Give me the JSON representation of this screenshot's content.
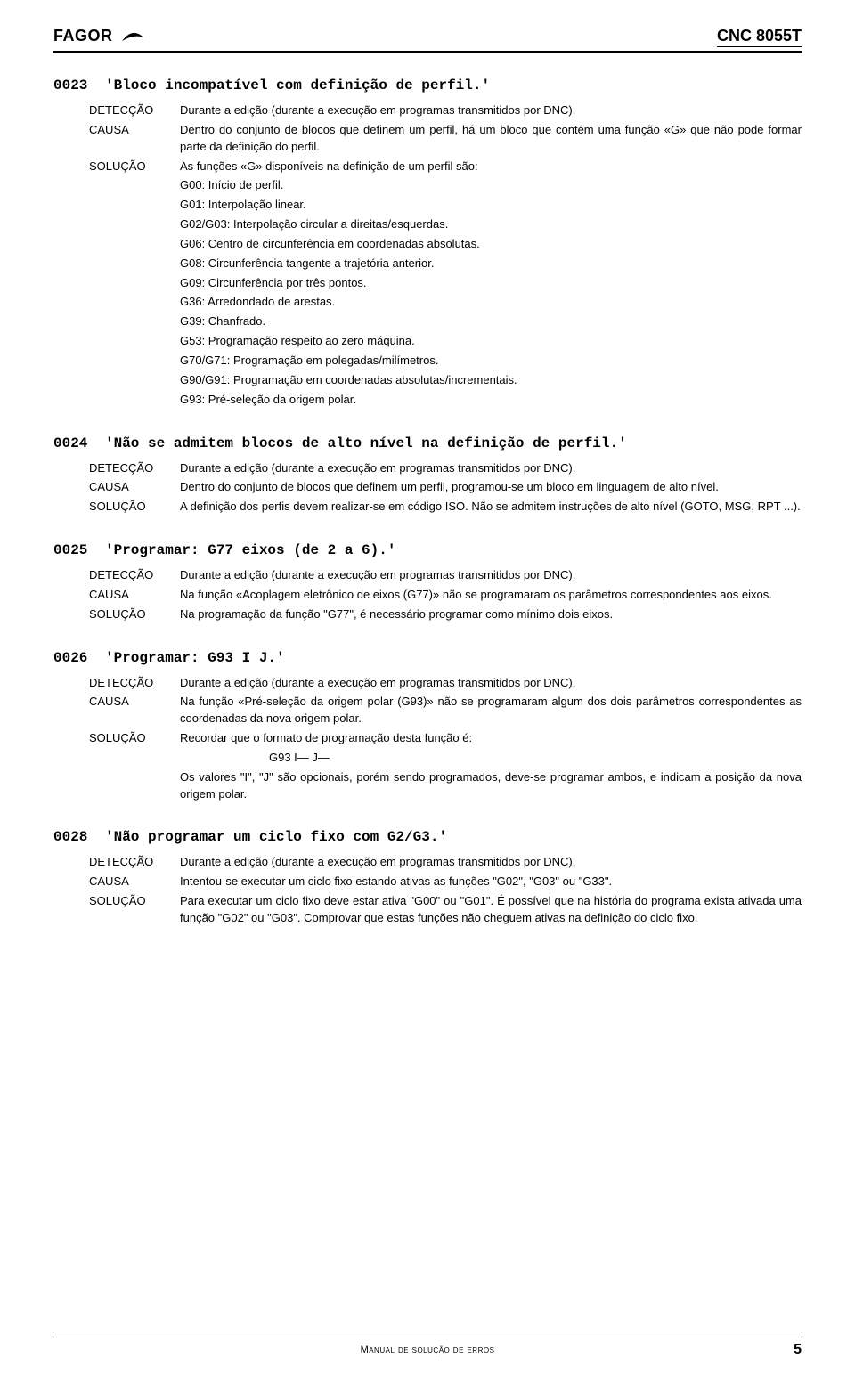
{
  "header": {
    "brand": "FAGOR",
    "model": "CNC 8055T"
  },
  "errors": [
    {
      "code": "0023",
      "title": "'Bloco incompatível com definição de perfil.'",
      "rows": [
        {
          "label": "DETECÇÃO",
          "text": "Durante a edição (durante a execução em programas transmitidos por DNC)."
        },
        {
          "label": "CAUSA",
          "text": "Dentro do conjunto de blocos que definem um perfil, há um bloco que contém uma função «G» que não pode formar parte da definição do perfil."
        },
        {
          "label": "SOLUÇÃO",
          "text": "As funções «G» disponíveis na definição de um perfil são:",
          "sub": [
            "G00: Início de perfil.",
            "G01: Interpolação linear.",
            "G02/G03: Interpolação circular a direitas/esquerdas.",
            "G06: Centro de circunferência em coordenadas absolutas.",
            "G08: Circunferência tangente a trajetória anterior.",
            "G09: Circunferência por três pontos.",
            "G36: Arredondado de arestas.",
            "G39: Chanfrado.",
            "G53: Programação respeito ao zero máquina.",
            "G70/G71: Programação em polegadas/milímetros.",
            "G90/G91: Programação em coordenadas absolutas/incrementais.",
            "G93: Pré-seleção da origem polar."
          ]
        }
      ]
    },
    {
      "code": "0024",
      "title": "'Não se admitem blocos de alto nível na definição de perfil.'",
      "rows": [
        {
          "label": "DETECÇÃO",
          "text": "Durante a edição (durante a execução em programas transmitidos por DNC)."
        },
        {
          "label": "CAUSA",
          "text": "Dentro do conjunto de blocos que definem um perfil, programou-se um bloco em linguagem de alto nível."
        },
        {
          "label": "SOLUÇÃO",
          "text": "A definição dos perfis devem realizar-se em código ISO. Não se admitem instruções de alto nível (GOTO, MSG, RPT ...)."
        }
      ]
    },
    {
      "code": "0025",
      "title": "'Programar: G77 eixos (de 2 a 6).'",
      "rows": [
        {
          "label": "DETECÇÃO",
          "text": "Durante a edição (durante a execução em programas transmitidos por DNC)."
        },
        {
          "label": "CAUSA",
          "text": "Na função «Acoplagem eletrônico de eixos (G77)» não se programaram os parâmetros correspondentes aos eixos."
        },
        {
          "label": "SOLUÇÃO",
          "text": "Na programação da função \"G77\", é necessário programar como mínimo dois eixos."
        }
      ]
    },
    {
      "code": "0026",
      "title": "'Programar: G93 I J.'",
      "rows": [
        {
          "label": "DETECÇÃO",
          "text": "Durante a edição (durante a execução em programas transmitidos por DNC)."
        },
        {
          "label": "CAUSA",
          "text": "Na função «Pré-seleção da origem polar (G93)» não se programaram algum dos dois parâmetros correspondentes as coordenadas da nova origem polar."
        },
        {
          "label": "SOLUÇÃO",
          "text": "Recordar que o formato de programação desta função é:",
          "center": "G93  I—  J—",
          "after": "Os valores \"I\", \"J\" são opcionais, porém sendo programados,  deve-se programar ambos, e indicam a posição da nova origem polar."
        }
      ]
    },
    {
      "code": "0028",
      "title": "'Não programar um ciclo fixo com G2/G3.'",
      "rows": [
        {
          "label": "DETECÇÃO",
          "text": "Durante a edição (durante a execução em programas transmitidos por DNC)."
        },
        {
          "label": "CAUSA",
          "text": "Intentou-se executar um ciclo fixo estando ativas as funções \"G02\", \"G03\" ou \"G33\"."
        },
        {
          "label": "SOLUÇÃO",
          "text": "Para executar um ciclo fixo deve estar ativa \"G00\" ou \"G01\". É possível que na história do programa exista ativada uma função \"G02\" ou \"G03\". Comprovar que estas funções não cheguem ativas na definição do ciclo fixo."
        }
      ]
    }
  ],
  "footer": {
    "title": "Manual de solução de erros",
    "page": "5"
  }
}
